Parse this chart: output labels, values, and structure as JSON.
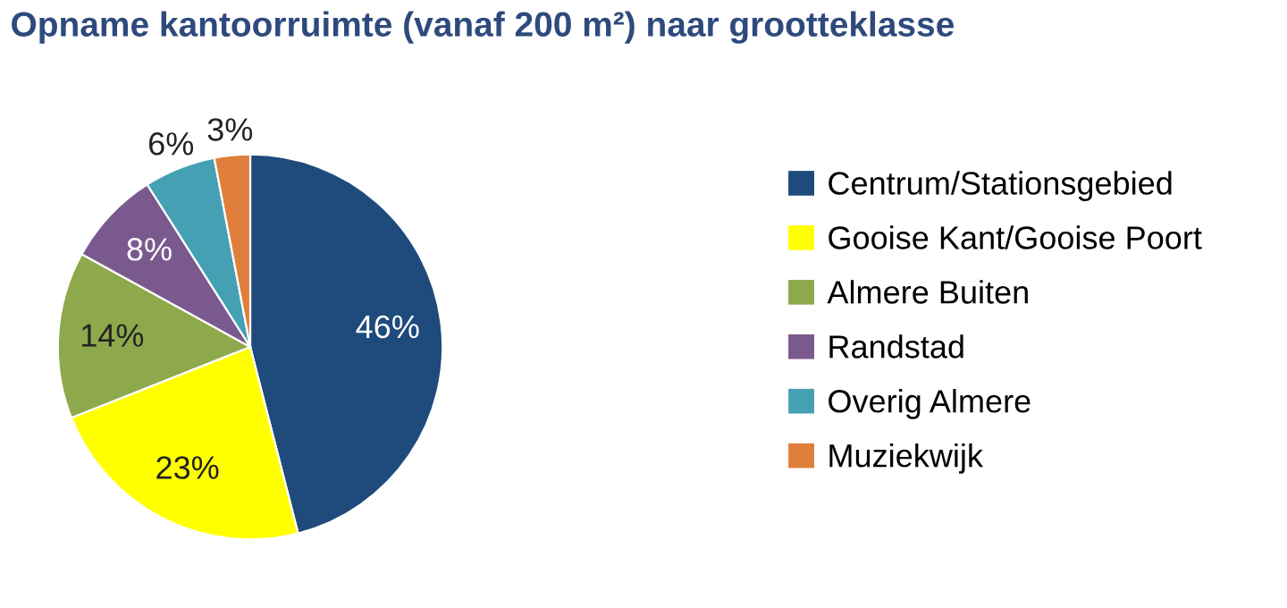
{
  "chart_data": {
    "type": "pie",
    "title": "Opname kantoorruimte (vanaf 200 m²) naar grootteklasse",
    "categories": [
      "Centrum/Stationsgebied",
      "Gooise Kant/Gooise Poort",
      "Almere Buiten",
      "Randstad",
      "Overig Almere",
      "Muziekwijk"
    ],
    "values": [
      46,
      23,
      14,
      8,
      6,
      3
    ],
    "colors": [
      "#1f4a7c",
      "#ffff00",
      "#8ea84c",
      "#7a5a8e",
      "#46a0b4",
      "#e07f3c"
    ],
    "value_labels": [
      "46%",
      "23%",
      "14%",
      "8%",
      "6%",
      "3%"
    ],
    "legend": "right"
  }
}
